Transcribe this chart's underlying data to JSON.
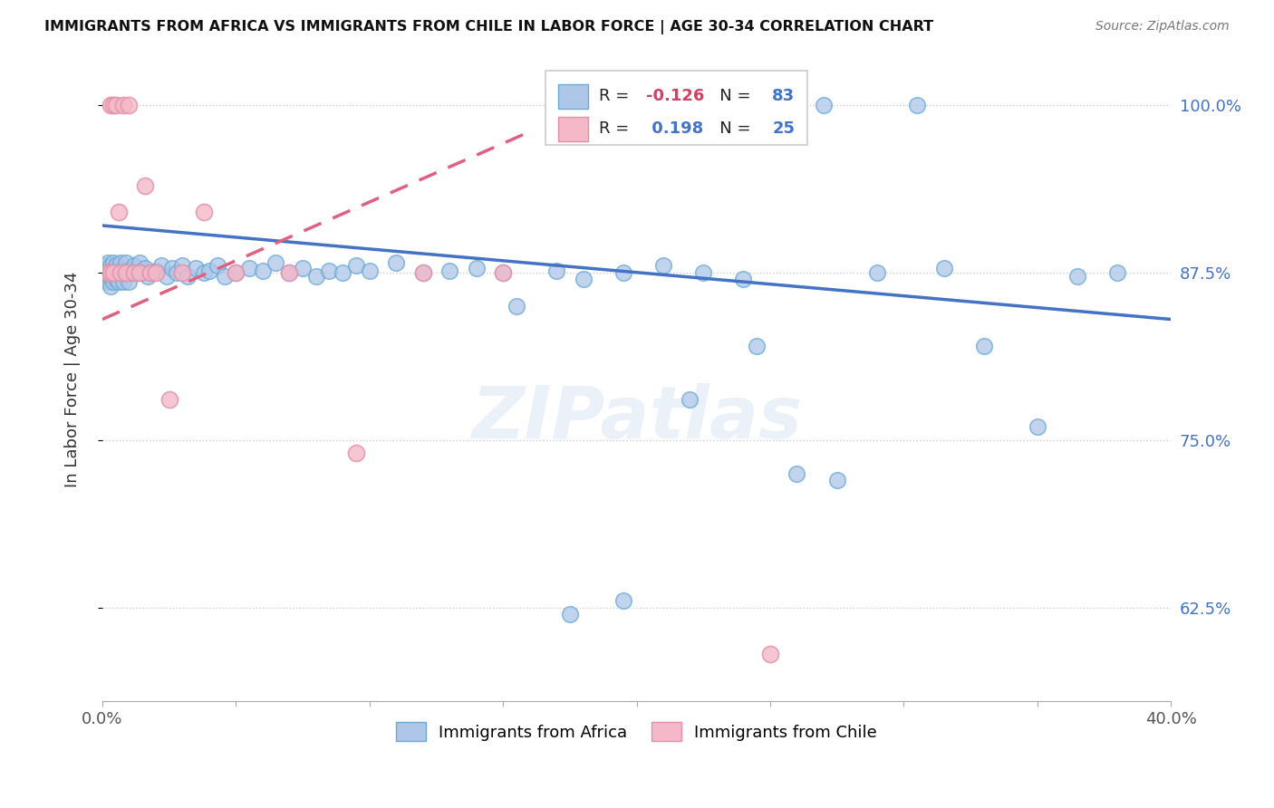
{
  "title": "IMMIGRANTS FROM AFRICA VS IMMIGRANTS FROM CHILE IN LABOR FORCE | AGE 30-34 CORRELATION CHART",
  "source": "Source: ZipAtlas.com",
  "ylabel": "In Labor Force | Age 30-34",
  "xlim": [
    0.0,
    0.4
  ],
  "ylim": [
    0.555,
    1.035
  ],
  "yticks": [
    0.625,
    0.75,
    0.875,
    1.0
  ],
  "yticklabels": [
    "62.5%",
    "75.0%",
    "87.5%",
    "100.0%"
  ],
  "xtick_positions": [
    0.0,
    0.05,
    0.1,
    0.15,
    0.2,
    0.25,
    0.3,
    0.35,
    0.4
  ],
  "xticklabels": [
    "0.0%",
    "",
    "",
    "",
    "",
    "",
    "",
    "",
    "40.0%"
  ],
  "legend_africa_label": "Immigrants from Africa",
  "legend_chile_label": "Immigrants from Chile",
  "africa_R": -0.126,
  "africa_N": 83,
  "chile_R": 0.198,
  "chile_N": 25,
  "africa_color": "#aec6e8",
  "africa_edge_color": "#6aaad4",
  "africa_line_color": "#4472c4",
  "chile_color": "#f4b8c8",
  "chile_edge_color": "#e090a8",
  "chile_line_color": "#e06080",
  "watermark": "ZIPatlas",
  "background_color": "#ffffff",
  "africa_scatter_x": [
    0.001,
    0.001,
    0.001,
    0.002,
    0.002,
    0.002,
    0.003,
    0.003,
    0.003,
    0.003,
    0.004,
    0.004,
    0.004,
    0.005,
    0.005,
    0.005,
    0.006,
    0.006,
    0.007,
    0.007,
    0.008,
    0.008,
    0.009,
    0.009,
    0.01,
    0.01,
    0.011,
    0.012,
    0.013,
    0.014,
    0.015,
    0.016,
    0.017,
    0.018,
    0.02,
    0.022,
    0.024,
    0.026,
    0.028,
    0.03,
    0.032,
    0.035,
    0.038,
    0.04,
    0.043,
    0.046,
    0.05,
    0.055,
    0.06,
    0.065,
    0.07,
    0.075,
    0.08,
    0.085,
    0.09,
    0.095,
    0.1,
    0.11,
    0.12,
    0.13,
    0.14,
    0.15,
    0.17,
    0.18,
    0.195,
    0.21,
    0.225,
    0.24,
    0.26,
    0.275,
    0.29,
    0.315,
    0.33,
    0.35,
    0.365,
    0.38,
    0.305,
    0.27,
    0.245,
    0.22,
    0.195,
    0.175,
    0.155
  ],
  "africa_scatter_y": [
    0.875,
    0.88,
    0.87,
    0.876,
    0.882,
    0.868,
    0.875,
    0.88,
    0.87,
    0.865,
    0.876,
    0.882,
    0.868,
    0.875,
    0.88,
    0.87,
    0.876,
    0.868,
    0.875,
    0.882,
    0.876,
    0.868,
    0.875,
    0.882,
    0.876,
    0.868,
    0.875,
    0.88,
    0.875,
    0.882,
    0.875,
    0.878,
    0.872,
    0.875,
    0.876,
    0.88,
    0.872,
    0.878,
    0.875,
    0.88,
    0.872,
    0.878,
    0.875,
    0.876,
    0.88,
    0.872,
    0.875,
    0.878,
    0.876,
    0.882,
    0.875,
    0.878,
    0.872,
    0.876,
    0.875,
    0.88,
    0.876,
    0.882,
    0.875,
    0.876,
    0.878,
    0.875,
    0.876,
    0.87,
    0.875,
    0.88,
    0.875,
    0.87,
    0.725,
    0.72,
    0.875,
    0.878,
    0.82,
    0.76,
    0.872,
    0.875,
    1.0,
    1.0,
    0.82,
    0.78,
    0.63,
    0.62,
    0.85
  ],
  "chile_scatter_x": [
    0.002,
    0.003,
    0.003,
    0.004,
    0.004,
    0.005,
    0.006,
    0.007,
    0.008,
    0.009,
    0.01,
    0.012,
    0.014,
    0.016,
    0.018,
    0.02,
    0.025,
    0.03,
    0.038,
    0.05,
    0.07,
    0.095,
    0.12,
    0.15,
    0.25
  ],
  "chile_scatter_y": [
    0.875,
    0.875,
    1.0,
    1.0,
    0.875,
    1.0,
    0.92,
    0.875,
    1.0,
    0.875,
    1.0,
    0.875,
    0.875,
    0.94,
    0.875,
    0.875,
    0.78,
    0.875,
    0.92,
    0.875,
    0.875,
    0.74,
    0.875,
    0.875,
    0.59
  ],
  "africa_trendline_x": [
    0.0,
    0.4
  ],
  "africa_trendline_y": [
    0.91,
    0.84
  ],
  "chile_trendline_x": [
    0.0,
    0.16
  ],
  "chile_trendline_y": [
    0.84,
    0.98
  ]
}
